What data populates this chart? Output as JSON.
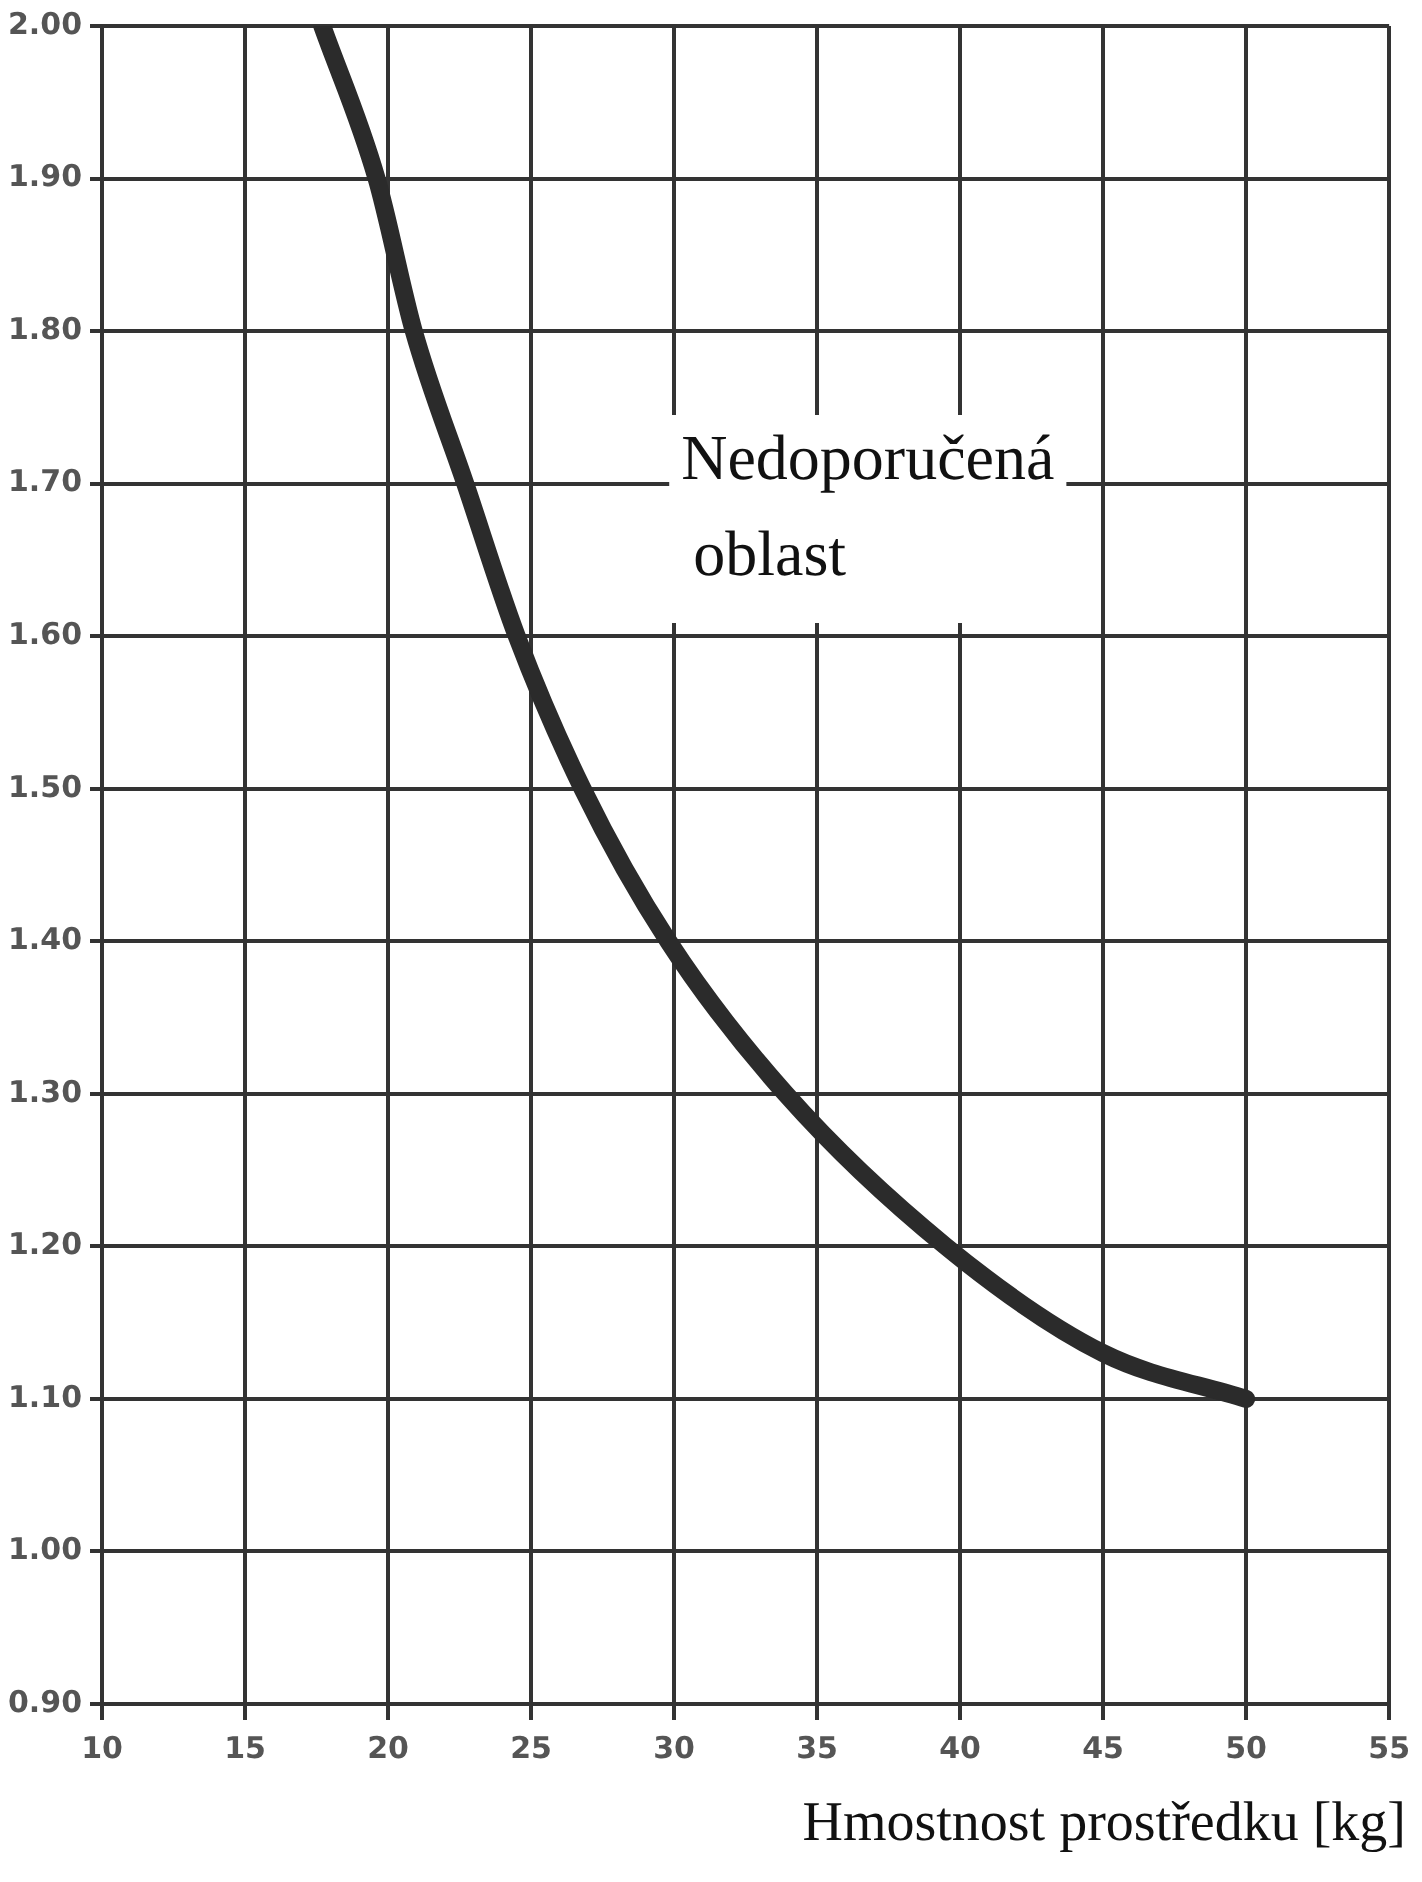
{
  "chart_data": {
    "type": "line",
    "xlabel": "Hmostnost prostředku [kg]",
    "x": [
      17.7,
      19.6,
      20.9,
      22.7,
      24.5,
      26.8,
      29.8,
      33.9,
      39.5,
      45,
      50
    ],
    "series": [
      {
        "color": "#2b2b2b",
        "values": [
          2.0,
          1.9,
          1.8,
          1.7,
          1.6,
          1.5,
          1.4,
          1.3,
          1.2,
          1.13,
          1.1
        ]
      }
    ],
    "xlim": [
      10,
      55
    ],
    "xticks": [
      10,
      15,
      20,
      25,
      30,
      35,
      40,
      45,
      50,
      55
    ],
    "ylim": [
      0.9,
      2.0
    ],
    "yticks": [
      {
        "value": 0.9,
        "label": "0.90"
      },
      {
        "value": 1.0,
        "label": "1.00"
      },
      {
        "value": 1.1,
        "label": "1.10"
      },
      {
        "value": 1.2,
        "label": "1.20"
      },
      {
        "value": 1.3,
        "label": "1.30"
      },
      {
        "value": 1.4,
        "label": "1.40"
      },
      {
        "value": 1.5,
        "label": "1.50"
      },
      {
        "value": 1.6,
        "label": "1.60"
      },
      {
        "value": 1.7,
        "label": "1.70"
      },
      {
        "value": 1.8,
        "label": "1.80"
      },
      {
        "value": 1.9,
        "label": "1.90"
      },
      {
        "value": 2.0,
        "label": "2.00"
      }
    ],
    "grid": true,
    "legend": false,
    "marker": "none",
    "line_style": "solid",
    "annotations": [
      "Nedoporučená\noblast"
    ]
  }
}
